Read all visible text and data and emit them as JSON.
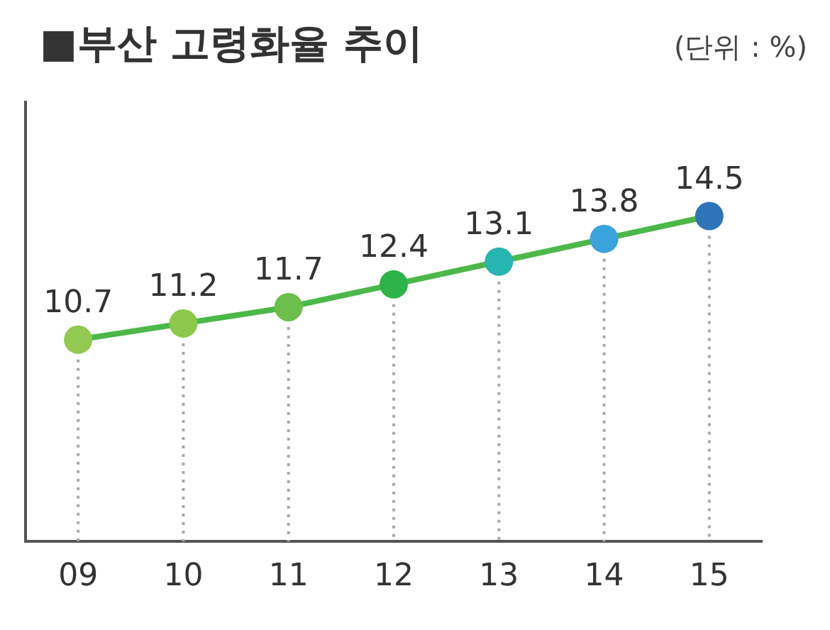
{
  "chart_data": {
    "type": "line",
    "title": "■부산 고령화율 추이",
    "annotations": [
      "(단위 : %)"
    ],
    "categories": [
      "09",
      "10",
      "11",
      "12",
      "13",
      "14",
      "15"
    ],
    "series": [
      {
        "color": "#4cb84a",
        "values": [
          10.7,
          11.2,
          11.7,
          12.4,
          13.1,
          13.8,
          14.5
        ],
        "colors": [
          "#92c950",
          "#8cc84b",
          "#6cbf4a",
          "#2db34a",
          "#26b5b0",
          "#3aa3dc",
          "#2f74b8"
        ]
      }
    ],
    "ylim": [
      4.5,
      18
    ],
    "tick_labels": "x",
    "grid": false,
    "legend": false,
    "marker": "circle",
    "line_style": "solid",
    "data_labels": true
  }
}
